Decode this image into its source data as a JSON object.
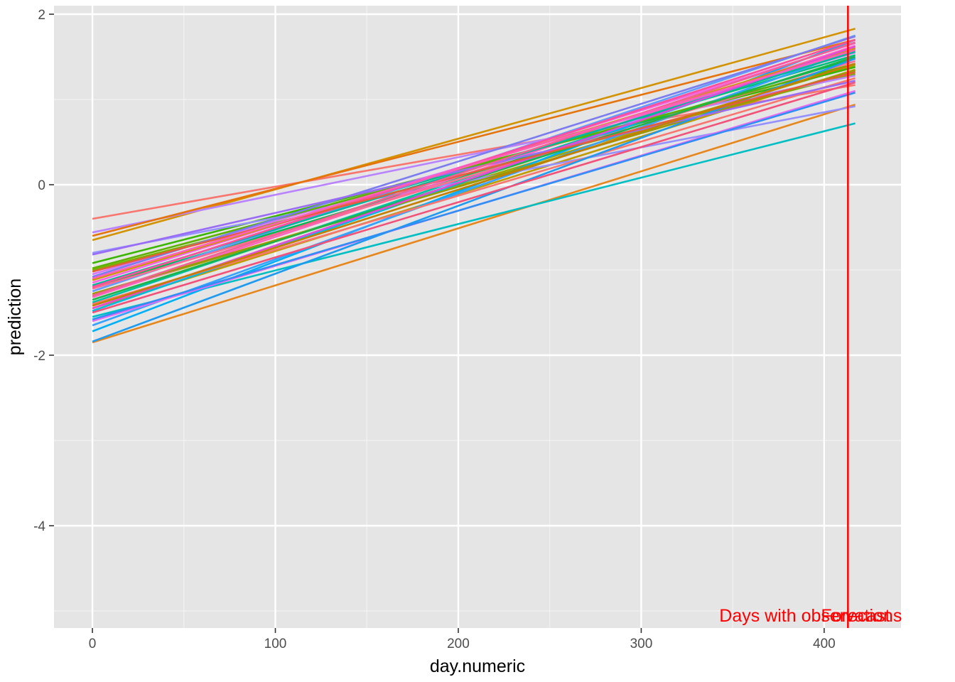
{
  "chart_data": {
    "type": "line",
    "title": "",
    "xlabel": "day.numeric",
    "ylabel": "prediction",
    "xlim": [
      -21,
      442
    ],
    "ylim": [
      -5.2,
      2.1
    ],
    "x_ticks": [
      0,
      100,
      200,
      300,
      400
    ],
    "x_tick_labels": [
      "0",
      "100",
      "200",
      "300",
      "400"
    ],
    "y_ticks": [
      -4,
      -2,
      0,
      2
    ],
    "y_tick_labels": [
      "-4",
      "-2",
      "0",
      "2"
    ],
    "grid": true,
    "legend": "none",
    "x_start": 0,
    "x_end": 417,
    "vline": {
      "x": 413,
      "color": "#ff0000"
    },
    "annotations": [
      {
        "text": "Days with observations",
        "x": 413,
        "y": -5.05,
        "anchor": "end",
        "color": "#ff0000"
      },
      {
        "text": "Forecast",
        "x": 413,
        "y": -5.05,
        "anchor": "start",
        "color": "#ff0000"
      }
    ],
    "series": [
      {
        "name": "s01",
        "color": "#f8766d",
        "y0": -0.4,
        "y1": 1.17
      },
      {
        "name": "s02",
        "color": "#e7861b",
        "y0": -1.85,
        "y1": 0.94
      },
      {
        "name": "s03",
        "color": "#d39200",
        "y0": -0.65,
        "y1": 1.83
      },
      {
        "name": "s04",
        "color": "#bf9b00",
        "y0": -1.45,
        "y1": 1.35
      },
      {
        "name": "s05",
        "color": "#a3a500",
        "y0": -1.3,
        "y1": 1.4
      },
      {
        "name": "s06",
        "color": "#7cae00",
        "y0": -1.0,
        "y1": 1.3
      },
      {
        "name": "s07",
        "color": "#39b600",
        "y0": -0.92,
        "y1": 1.38
      },
      {
        "name": "s08",
        "color": "#00bb4e",
        "y0": -1.2,
        "y1": 1.48
      },
      {
        "name": "s09",
        "color": "#00bf7d",
        "y0": -1.1,
        "y1": 1.52
      },
      {
        "name": "s10",
        "color": "#00c1a3",
        "y0": -1.38,
        "y1": 1.6
      },
      {
        "name": "s11",
        "color": "#00bfc4",
        "y0": -1.55,
        "y1": 0.72
      },
      {
        "name": "s12",
        "color": "#00bae0",
        "y0": -1.48,
        "y1": 1.62
      },
      {
        "name": "s13",
        "color": "#00b0f6",
        "y0": -1.72,
        "y1": 1.7
      },
      {
        "name": "s14",
        "color": "#35a2ff",
        "y0": -1.65,
        "y1": 1.58
      },
      {
        "name": "s15",
        "color": "#619cff",
        "y0": -1.25,
        "y1": 1.75
      },
      {
        "name": "s16",
        "color": "#9590ff",
        "y0": -0.8,
        "y1": 0.92
      },
      {
        "name": "s17",
        "color": "#b983ff",
        "y0": -0.56,
        "y1": 1.28
      },
      {
        "name": "s18",
        "color": "#d675f6",
        "y0": -1.05,
        "y1": 1.55
      },
      {
        "name": "s19",
        "color": "#e76bf3",
        "y0": -1.6,
        "y1": 1.1
      },
      {
        "name": "s20",
        "color": "#f564e3",
        "y0": -1.15,
        "y1": 1.66
      },
      {
        "name": "s21",
        "color": "#ff62bc",
        "y0": -1.32,
        "y1": 1.63
      },
      {
        "name": "s22",
        "color": "#ff6c91",
        "y0": -1.22,
        "y1": 1.45
      },
      {
        "name": "s23",
        "color": "#f8766d",
        "y0": -1.4,
        "y1": 1.25
      },
      {
        "name": "s24",
        "color": "#e6740c",
        "y0": -0.6,
        "y1": 1.7
      },
      {
        "name": "s25",
        "color": "#cd9600",
        "y0": -1.12,
        "y1": 1.6
      },
      {
        "name": "s26",
        "color": "#9a9a00",
        "y0": -1.28,
        "y1": 1.34
      },
      {
        "name": "s27",
        "color": "#5bb300",
        "y0": -0.98,
        "y1": 1.42
      },
      {
        "name": "s28",
        "color": "#1fb34a",
        "y0": -1.35,
        "y1": 1.5
      },
      {
        "name": "s29",
        "color": "#00b8a0",
        "y0": -1.18,
        "y1": 1.56
      },
      {
        "name": "s30",
        "color": "#1e9bf0",
        "y0": -1.84,
        "y1": 1.48
      },
      {
        "name": "s31",
        "color": "#2f8ff5",
        "y0": -1.58,
        "y1": 1.08
      },
      {
        "name": "s32",
        "color": "#7a7cf0",
        "y0": -1.08,
        "y1": 1.74
      },
      {
        "name": "s33",
        "color": "#9a6cf5",
        "y0": -0.82,
        "y1": 1.22
      },
      {
        "name": "s34",
        "color": "#e44ad8",
        "y0": -1.45,
        "y1": 1.62
      },
      {
        "name": "s35",
        "color": "#ff4f9b",
        "y0": -1.2,
        "y1": 1.7
      },
      {
        "name": "s36",
        "color": "#f25279",
        "y0": -1.5,
        "y1": 1.2
      },
      {
        "name": "s37",
        "color": "#e55d3a",
        "y0": -1.02,
        "y1": 1.32
      },
      {
        "name": "s38",
        "color": "#c47f00",
        "y0": -1.42,
        "y1": 1.42
      },
      {
        "name": "s39",
        "color": "#f06292",
        "y0": -1.3,
        "y1": 1.67
      },
      {
        "name": "s40",
        "color": "#ff5fb8",
        "y0": -1.1,
        "y1": 1.58
      }
    ]
  }
}
